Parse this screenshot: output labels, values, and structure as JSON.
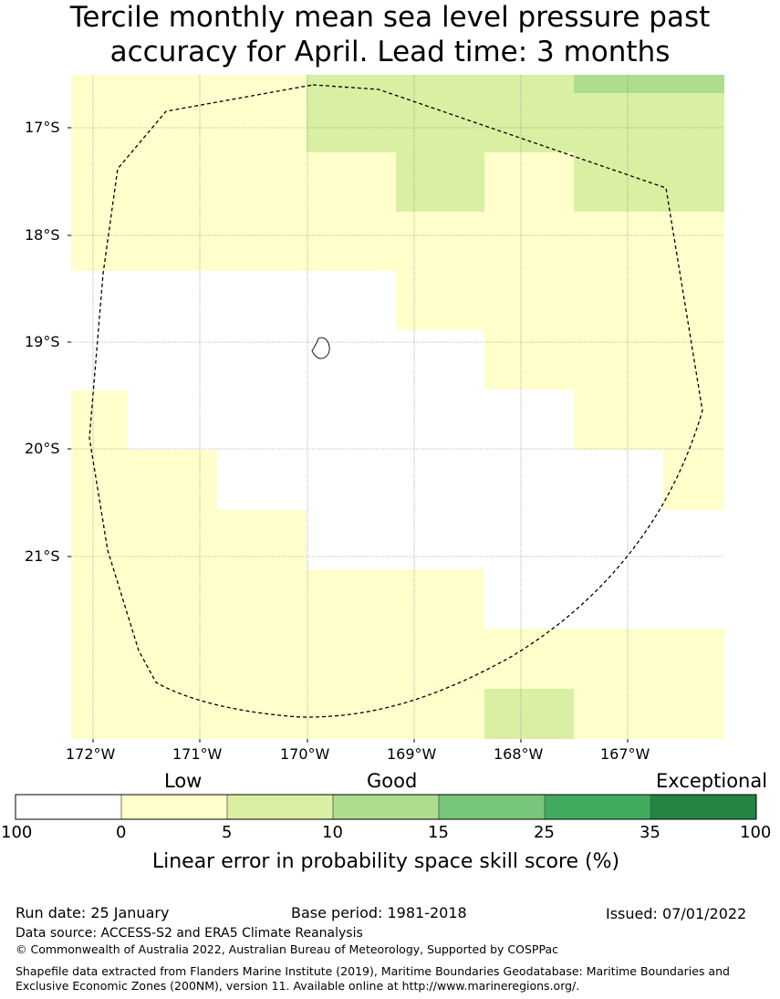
{
  "title": {
    "line1": "Tercile monthly mean sea level pressure past",
    "line2": "accuracy for April. Lead time: 3 months"
  },
  "map": {
    "lat_labels": [
      "17°S",
      "18°S",
      "19°S",
      "20°S",
      "21°S"
    ],
    "lon_labels": [
      "172°W",
      "171°W",
      "170°W",
      "169°W",
      "168°W",
      "167°W"
    ],
    "colors": {
      "none": "#ffffff",
      "low": "#ffffcc",
      "good": "#d9f0a3",
      "good2": "#addd8e",
      "boundary": "#000000"
    }
  },
  "legend": {
    "categories": [
      "Low",
      "Good",
      "Exceptional"
    ],
    "ticks": [
      "100",
      "0",
      "5",
      "10",
      "15",
      "25",
      "35",
      "100"
    ],
    "colors": [
      "#ffffff",
      "#ffffcc",
      "#d9f0a3",
      "#addd8e",
      "#78c679",
      "#41ab5d",
      "#238443"
    ],
    "label": "Linear error in probability space skill score (%)"
  },
  "footer": {
    "run_date": "Run date: 25 January",
    "base_period": "Base period: 1981-2018",
    "issued": "Issued: 07/01/2022",
    "data_source": "Data source: ACCESS-S2 and ERA5 Climate Reanalysis",
    "copyright": "© Commonwealth of Australia 2022, Australian Bureau of Meteorology, Supported by COSPPac",
    "shapefile": "Shapefile data extracted from Flanders Marine Institute (2019), Maritime Boundaries Geodatabase: Maritime Boundaries and Exclusive Economic Zones (200NM), version 11. Available online at http://www.marineregions.org/."
  }
}
